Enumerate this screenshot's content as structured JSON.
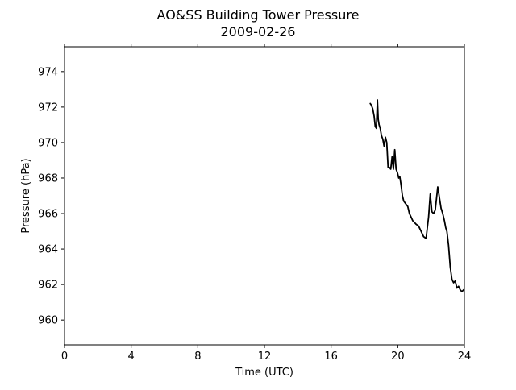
{
  "chart_data": {
    "type": "line",
    "title": "AO&SS Building Tower Pressure",
    "subtitle": "2009-02-26",
    "xlabel": "Time (UTC)",
    "ylabel": "Pressure (hPa)",
    "xlim": [
      0,
      24
    ],
    "ylim": [
      958.6,
      975.4
    ],
    "x_ticks": [
      0,
      4,
      8,
      12,
      16,
      20,
      24
    ],
    "y_ticks": [
      960,
      962,
      964,
      966,
      968,
      970,
      972,
      974
    ],
    "grid": false,
    "legend": "none",
    "series": [
      {
        "color": "#000000",
        "x": [
          18.35,
          18.42,
          18.5,
          18.58,
          18.65,
          18.72,
          18.78,
          18.83,
          18.88,
          18.95,
          19.02,
          19.1,
          19.18,
          19.26,
          19.34,
          19.42,
          19.5,
          19.58,
          19.66,
          19.74,
          19.82,
          19.9,
          19.98,
          20.06,
          20.12,
          20.2,
          20.28,
          20.36,
          20.44,
          20.52,
          20.6,
          20.7,
          20.8,
          20.9,
          21.0,
          21.1,
          21.25,
          21.4,
          21.55,
          21.7,
          21.85,
          21.95,
          22.05,
          22.15,
          22.25,
          22.32,
          22.4,
          22.5,
          22.6,
          22.7,
          22.8,
          22.88,
          22.95,
          23.05,
          23.15,
          23.25,
          23.35,
          23.45,
          23.55,
          23.65,
          23.75,
          23.85,
          23.95
        ],
        "y": [
          972.2,
          972.1,
          971.9,
          971.5,
          970.9,
          970.8,
          972.4,
          971.3,
          971.0,
          970.8,
          970.4,
          970.2,
          969.8,
          970.3,
          970.0,
          968.6,
          968.6,
          968.5,
          969.2,
          968.5,
          969.6,
          968.5,
          968.3,
          968.0,
          968.1,
          967.6,
          967.0,
          966.7,
          966.6,
          966.5,
          966.4,
          966.0,
          965.8,
          965.6,
          965.5,
          965.4,
          965.3,
          965.0,
          964.7,
          964.6,
          965.8,
          967.1,
          966.1,
          966.0,
          966.2,
          966.8,
          967.5,
          966.9,
          966.3,
          966.0,
          965.6,
          965.2,
          965.0,
          964.2,
          963.0,
          962.3,
          962.1,
          962.2,
          961.8,
          961.9,
          961.7,
          961.6,
          961.7
        ]
      }
    ]
  }
}
